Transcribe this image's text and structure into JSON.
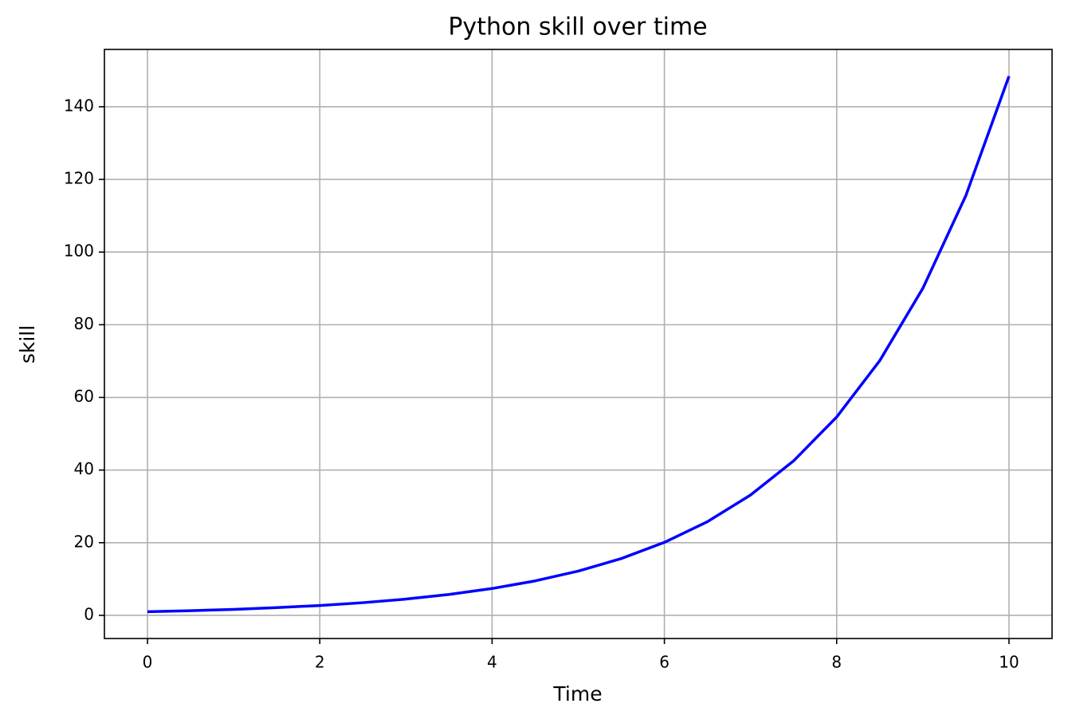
{
  "chart_data": {
    "type": "line",
    "title": "Python skill over time",
    "x_label": "Time",
    "y_label": "skill",
    "x": [
      0,
      0.5,
      1,
      1.5,
      2,
      2.5,
      3,
      3.5,
      4,
      4.5,
      5,
      5.5,
      6,
      6.5,
      7,
      7.5,
      8,
      8.5,
      9,
      9.5,
      10
    ],
    "series": [
      {
        "name": "skill",
        "color": "#0000ff",
        "values": [
          1.0,
          1.28,
          1.65,
          2.12,
          2.72,
          3.49,
          4.48,
          5.75,
          7.39,
          9.49,
          12.18,
          15.64,
          20.09,
          25.79,
          33.12,
          42.52,
          54.6,
          70.11,
          90.02,
          115.58,
          148.41
        ]
      }
    ],
    "xlim": [
      -0.5,
      10.5
    ],
    "xticks": [
      0,
      2,
      4,
      6,
      8,
      10
    ],
    "ylim": [
      -6.37,
      155.78
    ],
    "yticks": [
      0,
      20,
      40,
      60,
      80,
      100,
      120,
      140
    ],
    "grid": true
  }
}
